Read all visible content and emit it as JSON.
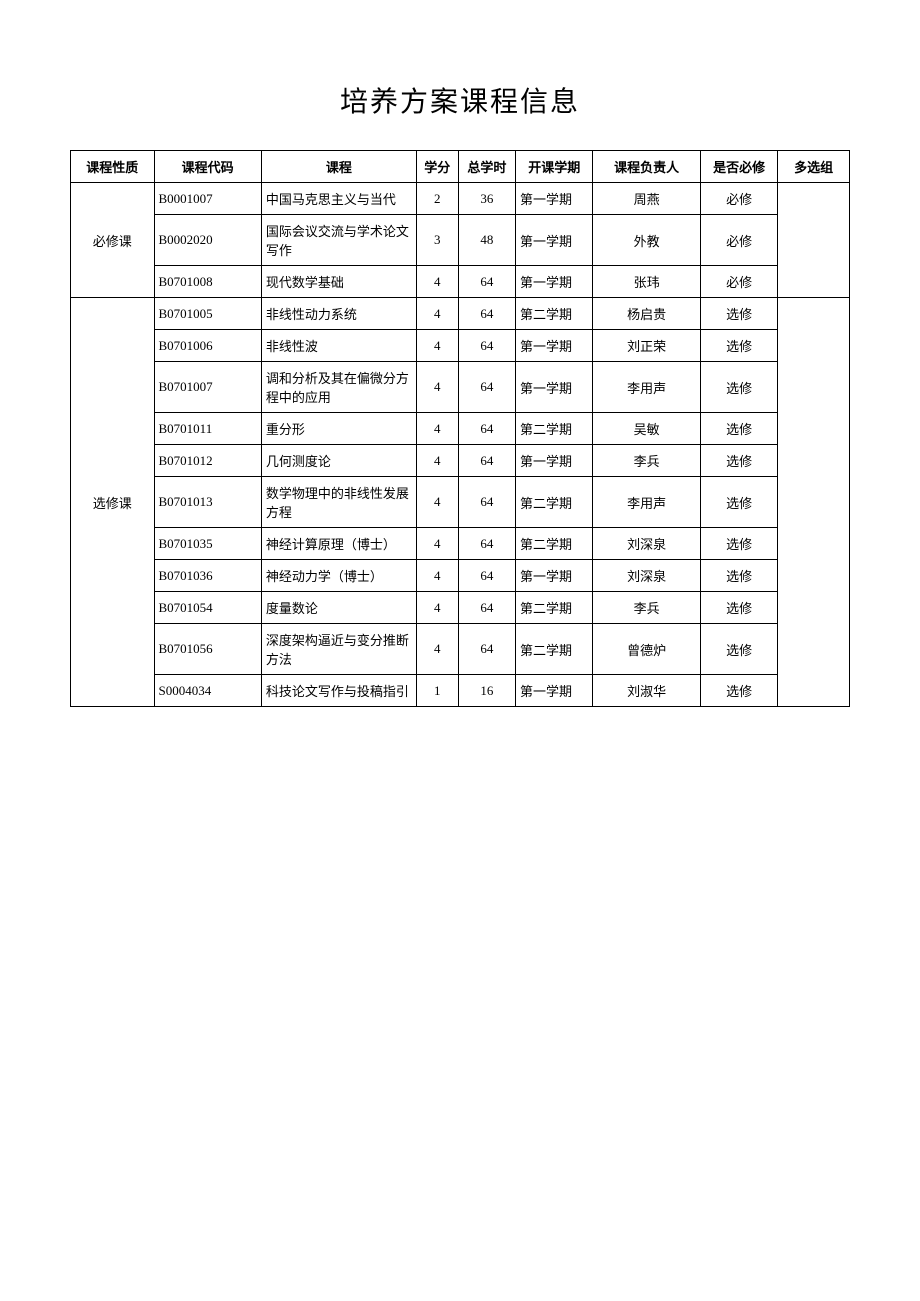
{
  "title": "培养方案课程信息",
  "table": {
    "headers": {
      "category": "课程性质",
      "code": "课程代码",
      "course": "课程",
      "credit": "学分",
      "hours": "总学时",
      "semester": "开课学期",
      "instructor": "课程负责人",
      "required": "是否必修",
      "group": "多选组"
    },
    "groups": [
      {
        "category": "必修课",
        "rows": [
          {
            "code": "B0001007",
            "course": "中国马克思主义与当代",
            "credit": "2",
            "hours": "36",
            "semester": "第一学期",
            "instructor": "周燕",
            "required": "必修",
            "group": ""
          },
          {
            "code": "B0002020",
            "course": "国际会议交流与学术论文写作",
            "credit": "3",
            "hours": "48",
            "semester": "第一学期",
            "instructor": "外教",
            "required": "必修",
            "group": ""
          },
          {
            "code": "B0701008",
            "course": "现代数学基础",
            "credit": "4",
            "hours": "64",
            "semester": "第一学期",
            "instructor": "张玮",
            "required": "必修",
            "group": ""
          }
        ]
      },
      {
        "category": "选修课",
        "rows": [
          {
            "code": "B0701005",
            "course": "非线性动力系统",
            "credit": "4",
            "hours": "64",
            "semester": "第二学期",
            "instructor": "杨启贵",
            "required": "选修",
            "group": ""
          },
          {
            "code": "B0701006",
            "course": "非线性波",
            "credit": "4",
            "hours": "64",
            "semester": "第一学期",
            "instructor": "刘正荣",
            "required": "选修",
            "group": ""
          },
          {
            "code": "B0701007",
            "course": "调和分析及其在偏微分方程中的应用",
            "credit": "4",
            "hours": "64",
            "semester": "第一学期",
            "instructor": "李用声",
            "required": "选修",
            "group": ""
          },
          {
            "code": "B0701011",
            "course": "重分形",
            "credit": "4",
            "hours": "64",
            "semester": "第二学期",
            "instructor": "吴敏",
            "required": "选修",
            "group": ""
          },
          {
            "code": "B0701012",
            "course": "几何测度论",
            "credit": "4",
            "hours": "64",
            "semester": "第一学期",
            "instructor": "李兵",
            "required": "选修",
            "group": ""
          },
          {
            "code": "B0701013",
            "course": "数学物理中的非线性发展方程",
            "credit": "4",
            "hours": "64",
            "semester": "第二学期",
            "instructor": "李用声",
            "required": "选修",
            "group": ""
          },
          {
            "code": "B0701035",
            "course": "神经计算原理（博士）",
            "credit": "4",
            "hours": "64",
            "semester": "第二学期",
            "instructor": "刘深泉",
            "required": "选修",
            "group": ""
          },
          {
            "code": "B0701036",
            "course": "神经动力学（博士）",
            "credit": "4",
            "hours": "64",
            "semester": "第一学期",
            "instructor": "刘深泉",
            "required": "选修",
            "group": ""
          },
          {
            "code": "B0701054",
            "course": "度量数论",
            "credit": "4",
            "hours": "64",
            "semester": "第二学期",
            "instructor": "李兵",
            "required": "选修",
            "group": ""
          },
          {
            "code": "B0701056",
            "course": "深度架构逼近与变分推断方法",
            "credit": "4",
            "hours": "64",
            "semester": "第二学期",
            "instructor": "曾德炉",
            "required": "选修",
            "group": ""
          },
          {
            "code": "S0004034",
            "course": "科技论文写作与投稿指引",
            "credit": "1",
            "hours": "16",
            "semester": "第一学期",
            "instructor": "刘淑华",
            "required": "选修",
            "group": ""
          }
        ]
      }
    ]
  }
}
